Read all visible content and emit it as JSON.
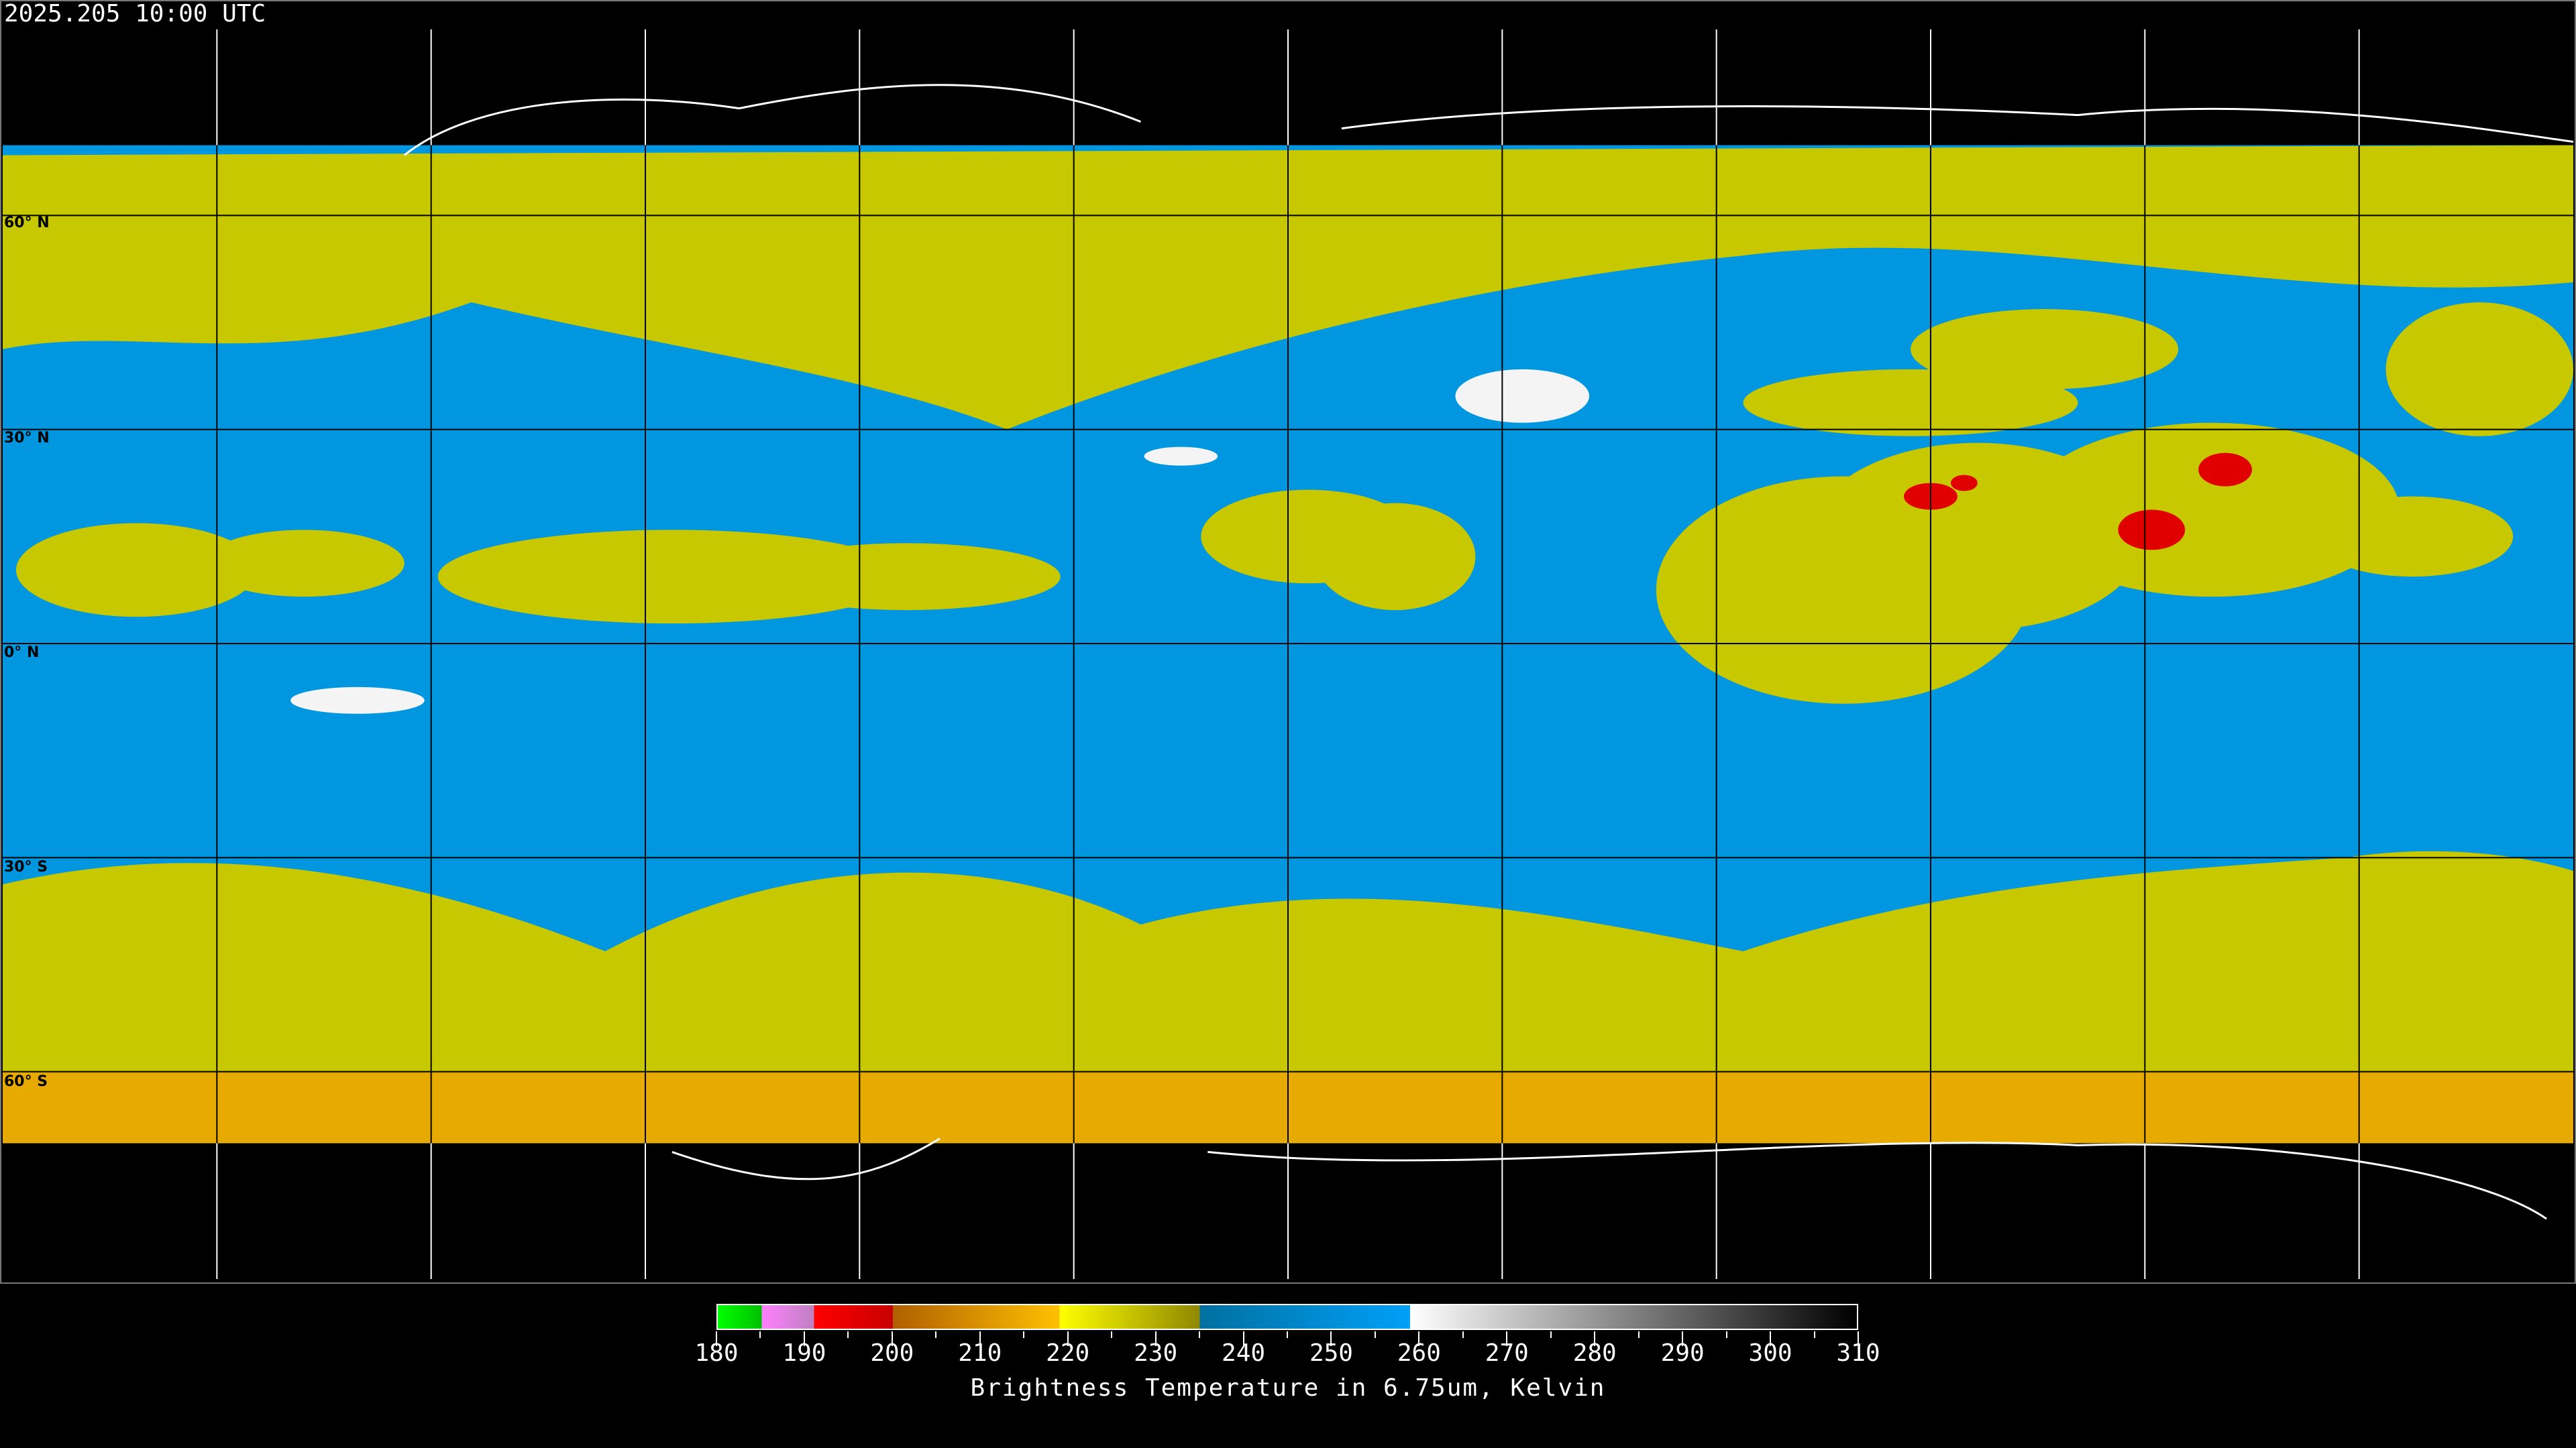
{
  "header": {
    "timestamp": "2025.205 10:00 UTC"
  },
  "map": {
    "projection": "equirectangular",
    "graticule_spacing_deg": 30,
    "lat_labels": [
      "60° N",
      "30° N",
      "0° N",
      "30° S",
      "60° S"
    ],
    "colors": {
      "clear_air": "#0096e0",
      "moist_mid": "#c8c800",
      "cold_tops": "#f0a000",
      "very_cold": "#e00000",
      "no_data": "#000000",
      "coastline_north": "#ffffff",
      "coastline": "#000000"
    }
  },
  "colorbar": {
    "min": 180,
    "max": 310,
    "tick_labels": [
      "180",
      "190",
      "200",
      "210",
      "220",
      "230",
      "240",
      "250",
      "260",
      "270",
      "280",
      "290",
      "300",
      "310"
    ],
    "segments": [
      {
        "from": 180,
        "to": 185,
        "start": "#00ff00",
        "end": "#00c000"
      },
      {
        "from": 185,
        "to": 191,
        "start": "#ff80ff",
        "end": "#c080c0"
      },
      {
        "from": 191,
        "to": 200,
        "start": "#ff0000",
        "end": "#c80000"
      },
      {
        "from": 200,
        "to": 219,
        "start": "#b06000",
        "end": "#ffc000"
      },
      {
        "from": 219,
        "to": 235,
        "start": "#ffff00",
        "end": "#908800"
      },
      {
        "from": 235,
        "to": 259,
        "start": "#0070a0",
        "end": "#00a0f8"
      },
      {
        "from": 259,
        "to": 310,
        "start": "#ffffff",
        "end": "#000000"
      }
    ],
    "title": "Brightness Temperature in 6.75um, Kelvin"
  }
}
